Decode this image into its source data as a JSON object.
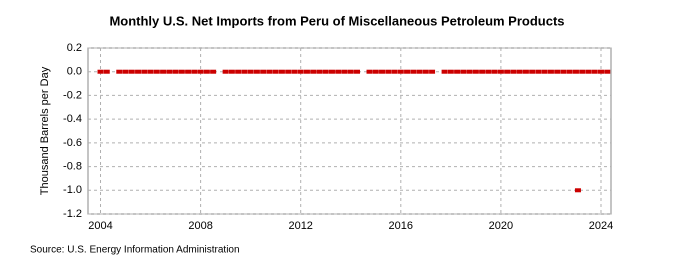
{
  "chart_data": {
    "type": "scatter",
    "title": "Monthly U.S. Net Imports from Peru of Miscellaneous Petroleum Products",
    "y_label": "Thousand Barrels per Day",
    "source": "Source: U.S. Energy Information Administration",
    "xlim": [
      2003.5,
      2024.4
    ],
    "xticks": [
      2004,
      2008,
      2012,
      2016,
      2020,
      2024
    ],
    "ylim": [
      -1.2,
      0.2
    ],
    "yticks": [
      0.2,
      {
        "value": 0,
        "label": "0.0"
      },
      -0.2,
      -0.4,
      -0.6,
      -0.8,
      {
        "value": -1,
        "label": "-1.0"
      },
      -1.2
    ],
    "grid": true,
    "series": [
      {
        "color": "#cc0000",
        "x": [
          2004,
          2004.25,
          2004.75,
          2005,
          2005.25,
          2005.5,
          2005.75,
          2006,
          2006.25,
          2006.5,
          2006.75,
          2007,
          2007.25,
          2007.5,
          2007.75,
          2008,
          2008.25,
          2008.5,
          2009,
          2009.25,
          2009.5,
          2009.75,
          2010,
          2010.25,
          2010.5,
          2010.75,
          2011,
          2011.25,
          2011.5,
          2011.75,
          2012,
          2012.25,
          2012.5,
          2012.75,
          2013,
          2013.25,
          2013.5,
          2013.75,
          2014,
          2014.25,
          2014.75,
          2015,
          2015.25,
          2015.5,
          2015.75,
          2016,
          2016.25,
          2016.5,
          2016.75,
          2017,
          2017.25,
          2017.75,
          2018,
          2018.25,
          2018.5,
          2018.75,
          2019,
          2019.25,
          2019.5,
          2019.75,
          2020,
          2020.25,
          2020.5,
          2020.75,
          2021,
          2021.25,
          2021.5,
          2021.75,
          2022,
          2022.25,
          2022.5,
          2022.75,
          2023,
          2023.25,
          2023.5,
          2023.75,
          2024,
          2024.25,
          2023.08
        ],
        "values": [
          0,
          0,
          0,
          0,
          0,
          0,
          0,
          0,
          0,
          0,
          0,
          0,
          0,
          0,
          0,
          0,
          0,
          0,
          0,
          0,
          0,
          0,
          0,
          0,
          0,
          0,
          0,
          0,
          0,
          0,
          0,
          0,
          0,
          0,
          0,
          0,
          0,
          0,
          0,
          0,
          0,
          0,
          0,
          0,
          0,
          0,
          0,
          0,
          0,
          0,
          0,
          0,
          0,
          0,
          0,
          0,
          0,
          0,
          0,
          0,
          0,
          0,
          0,
          0,
          0,
          0,
          0,
          0,
          0,
          0,
          0,
          0,
          0,
          0,
          0,
          0,
          0,
          0,
          -1
        ]
      }
    ]
  }
}
